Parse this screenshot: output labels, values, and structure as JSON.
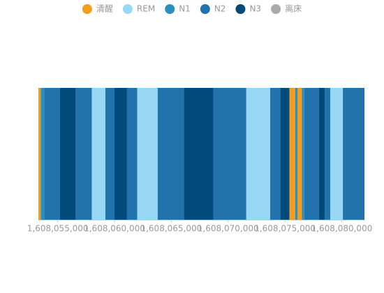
{
  "chart_data": {
    "type": "timeline",
    "series": [
      {
        "name": "清醒",
        "color": "#f39c1d"
      },
      {
        "name": "REM",
        "color": "#99d8f5"
      },
      {
        "name": "N1",
        "color": "#2a8fc1"
      },
      {
        "name": "N2",
        "color": "#2272ab"
      },
      {
        "name": "N3",
        "color": "#024a7a"
      },
      {
        "name": "离床",
        "color": "#aaaaaa"
      }
    ],
    "segments": [
      {
        "stage": "清醒",
        "start": 1608053300,
        "end": 1608053500
      },
      {
        "stage": "N1",
        "start": 1608053500,
        "end": 1608053800
      },
      {
        "stage": "N2",
        "start": 1608053800,
        "end": 1608055200
      },
      {
        "stage": "N3",
        "start": 1608055200,
        "end": 1608056600
      },
      {
        "stage": "N2",
        "start": 1608056600,
        "end": 1608058000
      },
      {
        "stage": "REM",
        "start": 1608058000,
        "end": 1608059200
      },
      {
        "stage": "N2",
        "start": 1608059200,
        "end": 1608060000
      },
      {
        "stage": "N3",
        "start": 1608060000,
        "end": 1608061100
      },
      {
        "stage": "N2",
        "start": 1608061100,
        "end": 1608062000
      },
      {
        "stage": "REM",
        "start": 1608062000,
        "end": 1608063800
      },
      {
        "stage": "N2",
        "start": 1608063800,
        "end": 1608066100
      },
      {
        "stage": "N3",
        "start": 1608066100,
        "end": 1608068700
      },
      {
        "stage": "N2",
        "start": 1608068700,
        "end": 1608071600
      },
      {
        "stage": "REM",
        "start": 1608071600,
        "end": 1608073700
      },
      {
        "stage": "N2",
        "start": 1608073700,
        "end": 1608074600
      },
      {
        "stage": "N3",
        "start": 1608074600,
        "end": 1608075400
      },
      {
        "stage": "清醒",
        "start": 1608075400,
        "end": 1608075900
      },
      {
        "stage": "N1",
        "start": 1608075900,
        "end": 1608076100
      },
      {
        "stage": "清醒",
        "start": 1608076100,
        "end": 1608076500
      },
      {
        "stage": "N1",
        "start": 1608076500,
        "end": 1608076700
      },
      {
        "stage": "N2",
        "start": 1608076700,
        "end": 1608078000
      },
      {
        "stage": "N3",
        "start": 1608078000,
        "end": 1608078500
      },
      {
        "stage": "N2",
        "start": 1608078500,
        "end": 1608079000
      },
      {
        "stage": "REM",
        "start": 1608079000,
        "end": 1608080100
      },
      {
        "stage": "N2",
        "start": 1608080100,
        "end": 1608082000
      }
    ],
    "xlim": [
      1608053300,
      1608082000
    ],
    "xticks": [
      {
        "value": 1608055000,
        "label": "1,608,055,000"
      },
      {
        "value": 1608060000,
        "label": "1,608,060,000"
      },
      {
        "value": 1608065000,
        "label": "1,608,065,000"
      },
      {
        "value": 1608070000,
        "label": "1,608,070,000"
      },
      {
        "value": 1608075000,
        "label": "1,608,075,000"
      },
      {
        "value": 1608080000,
        "label": "1,608,080,000"
      }
    ]
  }
}
